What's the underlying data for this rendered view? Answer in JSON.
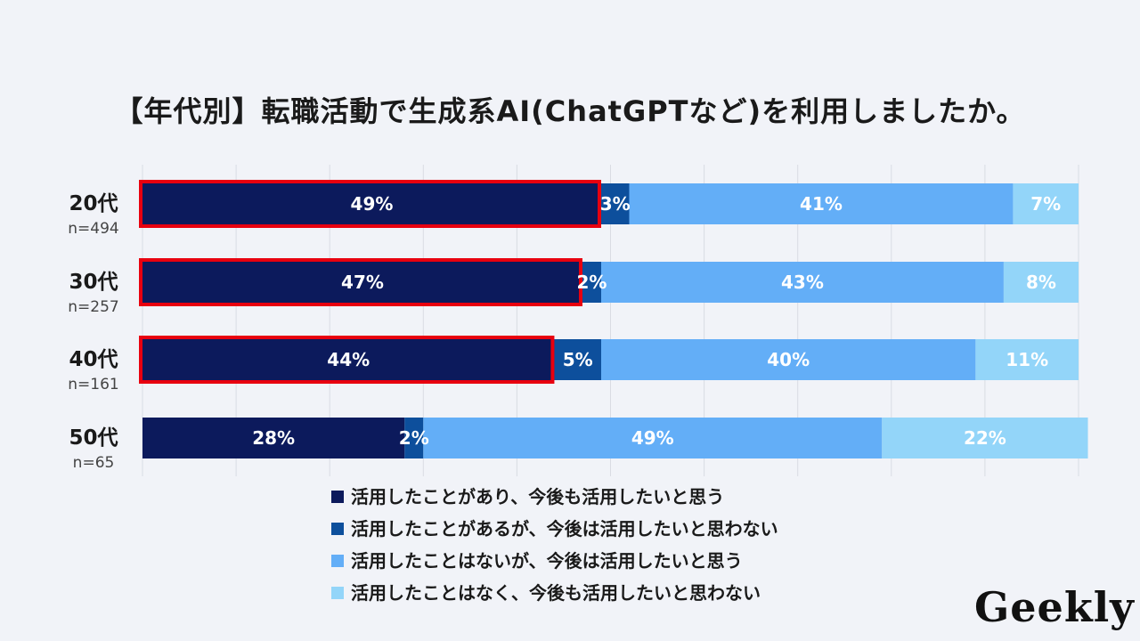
{
  "title": "【年代別】転職活動で生成系AI(ChatGPTなど)を利用しましたか。",
  "logo": "Geekly",
  "chart_data": {
    "type": "bar",
    "orientation": "horizontal",
    "stacked": true,
    "xlim": [
      0,
      100
    ],
    "grid": true,
    "categories": [
      "20代",
      "30代",
      "40代",
      "50代"
    ],
    "sample_sizes": [
      "n=494",
      "n=257",
      "n=161",
      "n=65"
    ],
    "series": [
      {
        "name": "活用したことがあり、今後も活用したいと思う",
        "color": "#0c1a5c",
        "values": [
          49,
          47,
          44,
          28
        ]
      },
      {
        "name": "活用したことがあるが、今後は活用したいと思わない",
        "color": "#0d4f9c",
        "values": [
          3,
          2,
          5,
          2
        ]
      },
      {
        "name": "活用したことはないが、今後は活用したいと思う",
        "color": "#63aef7",
        "values": [
          41,
          43,
          40,
          49
        ]
      },
      {
        "name": "活用したことはなく、今後も活用したいと思わない",
        "color": "#93d5f9",
        "values": [
          7,
          8,
          11,
          22
        ]
      }
    ],
    "highlight": {
      "series_index": 0,
      "categories": [
        0,
        1,
        2
      ],
      "color": "#e8000f"
    }
  }
}
